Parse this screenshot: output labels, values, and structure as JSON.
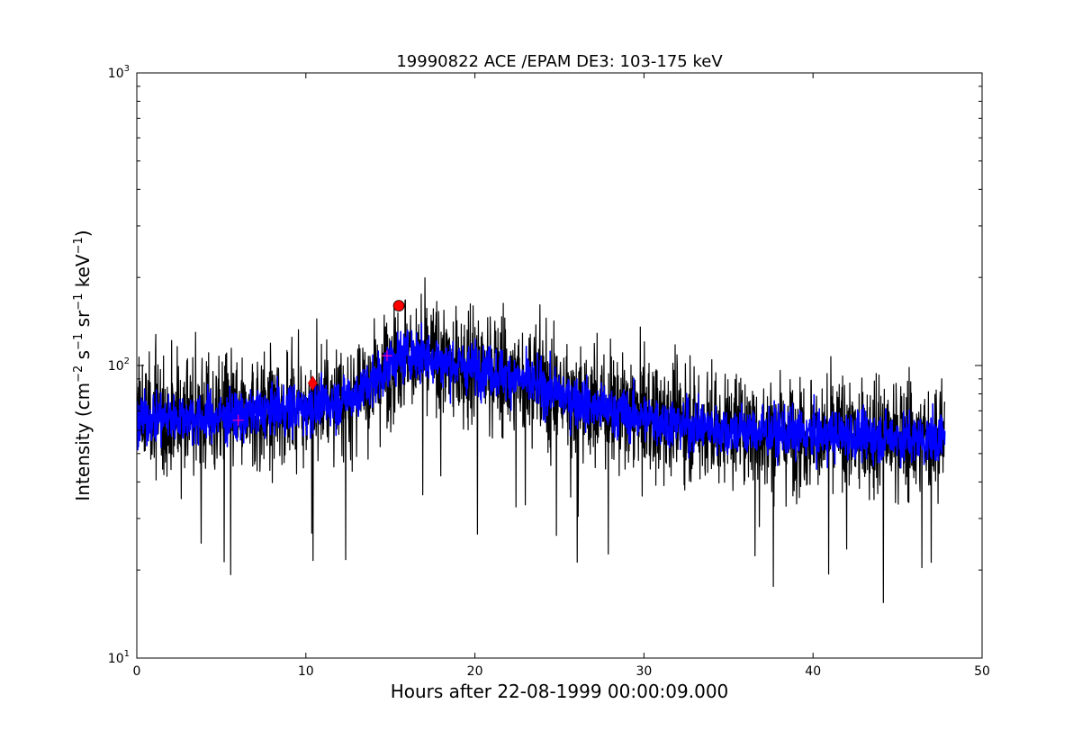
{
  "chart_data": {
    "type": "line",
    "title": "19990822 ACE /EPAM DE3: 103-175 keV",
    "xlabel": "Hours after 22-08-1999 00:00:09.000",
    "ylabel": "Intensity (cm$^{-2}$ s$^{-1}$ sr$^{-1}$ keV$^{-1}$)",
    "ylabel_parts": {
      "prefix": "Intensity (cm",
      "exp1": "−2",
      "mid1": " s",
      "exp2": "−1",
      "mid2": " sr",
      "exp3": "−1",
      "mid3": " keV",
      "exp4": "−1",
      "suffix": ")"
    },
    "xlim": [
      0,
      50
    ],
    "ylim": [
      10,
      1000
    ],
    "yscale": "log",
    "grid": false,
    "x_ticks": [
      0,
      10,
      20,
      30,
      40,
      50
    ],
    "x_tick_labels": [
      "0",
      "10",
      "20",
      "30",
      "40",
      "50"
    ],
    "y_ticks": [
      10,
      100,
      1000
    ],
    "y_tick_labels": [
      {
        "base": "10",
        "exp": "1"
      },
      {
        "base": "10",
        "exp": "2"
      },
      {
        "base": "10",
        "exp": "3"
      }
    ],
    "series": [
      {
        "style": "black-noisy-line",
        "color": "#000000",
        "x": [
          0,
          1,
          2,
          3,
          4,
          5,
          6,
          7,
          8,
          9,
          10,
          11,
          12,
          13,
          14,
          15,
          16,
          17,
          18,
          19,
          20,
          21,
          22,
          23,
          24,
          25,
          26,
          27,
          28,
          29,
          30,
          31,
          32,
          33,
          34,
          35,
          36,
          37,
          38,
          39,
          40,
          41,
          42,
          43,
          44,
          45,
          46,
          47,
          47.8
        ],
        "y": [
          65,
          67,
          66,
          67,
          66,
          67,
          67,
          69,
          70,
          71,
          72,
          74,
          76,
          80,
          88,
          102,
          110,
          108,
          103,
          100,
          98,
          96,
          92,
          88,
          84,
          80,
          76,
          72,
          70,
          68,
          66,
          65,
          63,
          62,
          61,
          60,
          60,
          59,
          59,
          58,
          58,
          58,
          58,
          57,
          57,
          57,
          56,
          56,
          56
        ]
      },
      {
        "style": "blue-smoothed-line",
        "color": "#0000ff",
        "x": [
          0,
          1,
          2,
          3,
          4,
          5,
          6,
          7,
          8,
          9,
          10,
          11,
          12,
          13,
          14,
          15,
          16,
          17,
          18,
          19,
          20,
          21,
          22,
          23,
          24,
          25,
          26,
          27,
          28,
          29,
          30,
          31,
          32,
          33,
          34,
          35,
          36,
          37,
          38,
          39,
          40,
          41,
          42,
          43,
          44,
          45,
          46,
          47,
          47.8
        ],
        "y": [
          65,
          67,
          66,
          67,
          66,
          67,
          67,
          69,
          70,
          71,
          72,
          74,
          76,
          80,
          88,
          102,
          110,
          108,
          103,
          100,
          98,
          96,
          92,
          88,
          84,
          80,
          76,
          72,
          70,
          68,
          66,
          65,
          63,
          62,
          61,
          60,
          60,
          59,
          59,
          58,
          58,
          58,
          58,
          57,
          57,
          57,
          56,
          56,
          56
        ]
      }
    ],
    "markers": [
      {
        "shape": "plus",
        "x": 6.0,
        "y": 65,
        "color": "#ff00aa"
      },
      {
        "shape": "diamond",
        "x": 10.4,
        "y": 87,
        "color": "#ff0000"
      },
      {
        "shape": "plus",
        "x": 14.8,
        "y": 108,
        "color": "#ff00aa"
      },
      {
        "shape": "circle",
        "x": 15.5,
        "y": 160,
        "color": "#ff0000"
      }
    ]
  }
}
